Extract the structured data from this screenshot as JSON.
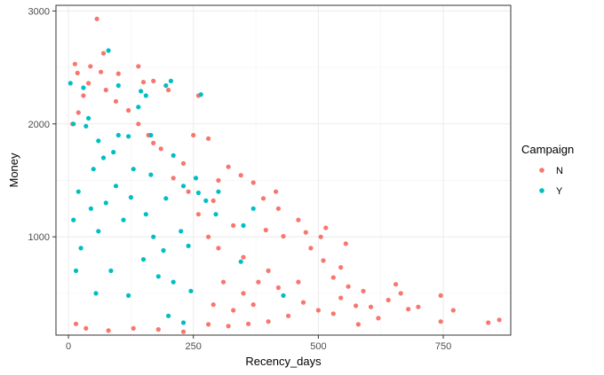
{
  "chart_data": {
    "type": "scatter",
    "title": "",
    "xlabel": "Recency_days",
    "ylabel": "Money",
    "xlim": [
      -25,
      885
    ],
    "ylim": [
      130,
      3050
    ],
    "x_ticks": [
      0,
      250,
      500,
      750
    ],
    "x_tick_labels": [
      "0",
      "250",
      "500",
      "750"
    ],
    "y_ticks": [
      1000,
      2000,
      3000
    ],
    "y_tick_labels": [
      "1000",
      "2000",
      "3000"
    ],
    "grid": true,
    "legend": {
      "title": "Campaign",
      "position": "right"
    },
    "series": [
      {
        "name": "N",
        "color": "#F8766D",
        "points": [
          [
            57,
            2930
          ],
          [
            44,
            2510
          ],
          [
            13,
            2530
          ],
          [
            70,
            2625
          ],
          [
            65,
            2460
          ],
          [
            100,
            2445
          ],
          [
            140,
            2510
          ],
          [
            18,
            2450
          ],
          [
            150,
            2370
          ],
          [
            170,
            2380
          ],
          [
            200,
            2300
          ],
          [
            260,
            2250
          ],
          [
            280,
            1870
          ],
          [
            170,
            1830
          ],
          [
            250,
            1900
          ],
          [
            320,
            1620
          ],
          [
            345,
            1545
          ],
          [
            300,
            1500
          ],
          [
            370,
            1480
          ],
          [
            415,
            1400
          ],
          [
            390,
            1340
          ],
          [
            420,
            1250
          ],
          [
            395,
            1060
          ],
          [
            430,
            1005
          ],
          [
            460,
            1150
          ],
          [
            475,
            1040
          ],
          [
            505,
            1000
          ],
          [
            515,
            1080
          ],
          [
            555,
            940
          ],
          [
            485,
            900
          ],
          [
            510,
            790
          ],
          [
            545,
            730
          ],
          [
            530,
            640
          ],
          [
            560,
            560
          ],
          [
            590,
            520
          ],
          [
            545,
            460
          ],
          [
            575,
            390
          ],
          [
            605,
            380
          ],
          [
            655,
            580
          ],
          [
            665,
            500
          ],
          [
            640,
            440
          ],
          [
            700,
            380
          ],
          [
            680,
            360
          ],
          [
            745,
            480
          ],
          [
            770,
            350
          ],
          [
            745,
            250
          ],
          [
            840,
            240
          ],
          [
            862,
            265
          ],
          [
            620,
            280
          ],
          [
            580,
            225
          ],
          [
            530,
            320
          ],
          [
            500,
            350
          ],
          [
            470,
            420
          ],
          [
            440,
            300
          ],
          [
            400,
            250
          ],
          [
            360,
            230
          ],
          [
            320,
            210
          ],
          [
            280,
            225
          ],
          [
            230,
            160
          ],
          [
            180,
            180
          ],
          [
            130,
            190
          ],
          [
            80,
            170
          ],
          [
            35,
            190
          ],
          [
            15,
            230
          ],
          [
            400,
            700
          ],
          [
            350,
            820
          ],
          [
            300,
            900
          ],
          [
            280,
            1000
          ],
          [
            330,
            1100
          ],
          [
            260,
            1200
          ],
          [
            290,
            1320
          ],
          [
            240,
            1400
          ],
          [
            210,
            1520
          ],
          [
            230,
            1650
          ],
          [
            185,
            1780
          ],
          [
            160,
            1900
          ],
          [
            140,
            2000
          ],
          [
            120,
            2120
          ],
          [
            95,
            2200
          ],
          [
            75,
            2300
          ],
          [
            40,
            2360
          ],
          [
            30,
            2250
          ],
          [
            20,
            2100
          ],
          [
            8,
            2000
          ],
          [
            460,
            600
          ],
          [
            420,
            550
          ],
          [
            380,
            600
          ],
          [
            350,
            500
          ],
          [
            310,
            600
          ],
          [
            370,
            400
          ],
          [
            330,
            350
          ],
          [
            290,
            400
          ]
        ]
      },
      {
        "name": "Y",
        "color": "#00BFC4",
        "points": [
          [
            80,
            2650
          ],
          [
            30,
            2320
          ],
          [
            4,
            2360
          ],
          [
            10,
            2000
          ],
          [
            100,
            2340
          ],
          [
            145,
            2290
          ],
          [
            155,
            2250
          ],
          [
            205,
            2380
          ],
          [
            195,
            2340
          ],
          [
            265,
            2260
          ],
          [
            40,
            2050
          ],
          [
            60,
            1850
          ],
          [
            120,
            1890
          ],
          [
            165,
            1900
          ],
          [
            210,
            1720
          ],
          [
            255,
            1520
          ],
          [
            230,
            1450
          ],
          [
            195,
            1340
          ],
          [
            260,
            1390
          ],
          [
            275,
            1320
          ],
          [
            300,
            1400
          ],
          [
            370,
            1250
          ],
          [
            350,
            1100
          ],
          [
            130,
            1600
          ],
          [
            90,
            1750
          ],
          [
            50,
            1600
          ],
          [
            20,
            1400
          ],
          [
            75,
            1300
          ],
          [
            110,
            1150
          ],
          [
            60,
            1050
          ],
          [
            25,
            900
          ],
          [
            15,
            700
          ],
          [
            150,
            800
          ],
          [
            180,
            650
          ],
          [
            210,
            600
          ],
          [
            245,
            520
          ],
          [
            230,
            240
          ],
          [
            190,
            880
          ],
          [
            345,
            780
          ],
          [
            295,
            1200
          ],
          [
            170,
            1000
          ],
          [
            120,
            480
          ],
          [
            100,
            1900
          ],
          [
            140,
            2150
          ],
          [
            70,
            1700
          ],
          [
            35,
            1980
          ],
          [
            95,
            1450
          ],
          [
            165,
            1550
          ],
          [
            225,
            1050
          ],
          [
            240,
            920
          ],
          [
            430,
            480
          ],
          [
            200,
            300
          ],
          [
            10,
            1150
          ],
          [
            45,
            1250
          ],
          [
            125,
            1350
          ],
          [
            155,
            1200
          ],
          [
            55,
            500
          ],
          [
            85,
            700
          ]
        ]
      }
    ]
  }
}
